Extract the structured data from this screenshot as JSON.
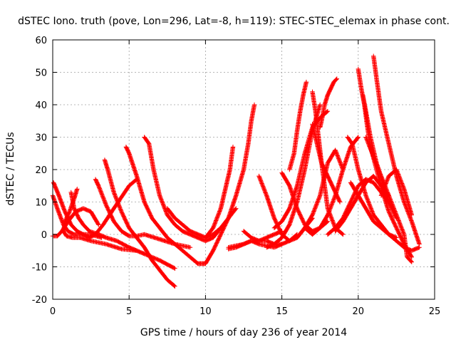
{
  "chart_data": {
    "type": "scatter",
    "title": "dSTEC Iono. truth (pove, Lon=296, Lat=-8, h=119): STEC-STEC_elemax in phase cont.",
    "xlabel": "GPS time / hours of day 236 of year 2014",
    "ylabel": "dSTEC  / TECUs",
    "xlim": [
      0,
      25
    ],
    "ylim": [
      -20,
      60
    ],
    "x_ticks": [
      0,
      5,
      10,
      15,
      20,
      25
    ],
    "y_ticks": [
      -20,
      -10,
      0,
      10,
      20,
      30,
      40,
      50,
      60
    ],
    "grid": true,
    "legend": "none",
    "marker": "plus",
    "color": "#ff0000",
    "series": [
      {
        "x": [
          0.0,
          0.3,
          0.6,
          1.0,
          1.5,
          2.0,
          2.5,
          3.0
        ],
        "y": [
          -0.5,
          -0.5,
          1,
          4,
          7,
          8,
          7,
          3
        ]
      },
      {
        "x": [
          0.05,
          0.4,
          0.8,
          1.2,
          1.6,
          2.0,
          2.4,
          2.8,
          3.3,
          4.0,
          5.0,
          5.5
        ],
        "y": [
          16,
          12,
          7,
          3,
          1,
          0,
          -1,
          0,
          3,
          8,
          15,
          17
        ]
      },
      {
        "x": [
          0.0,
          0.3,
          0.7,
          1.0,
          1.4,
          1.8,
          2.5,
          3.2
        ],
        "y": [
          12,
          8,
          3,
          1,
          0,
          0,
          0,
          -1
        ]
      },
      {
        "x": [
          1.2,
          1.4,
          1.7,
          2.0,
          2.4,
          3.0,
          3.5,
          4.2,
          5.0,
          5.5,
          6.0,
          7.0,
          8.0
        ],
        "y": [
          13,
          8,
          5,
          3,
          1,
          0,
          -1,
          -2,
          -4,
          -5,
          -6,
          -8,
          -10.5
        ]
      },
      {
        "x": [
          1.6,
          1.4,
          1.1,
          0.8,
          0.7,
          0.9,
          1.3,
          1.8,
          2.5,
          3.5,
          4.5,
          5.5
        ],
        "y": [
          14,
          11,
          7,
          4,
          1,
          -0.5,
          -1,
          -1,
          -2,
          -3,
          -4.5,
          -5
        ]
      },
      {
        "x": [
          2.8,
          3.0,
          3.5,
          4.0,
          4.5,
          5.0,
          5.5,
          6.0,
          7.0,
          8.0,
          9.0
        ],
        "y": [
          17,
          15,
          9,
          4,
          1,
          -0.5,
          -0.5,
          0,
          -1.5,
          -3,
          -4
        ]
      },
      {
        "x": [
          3.4,
          3.6,
          4.0,
          4.5,
          5.0,
          5.5,
          6.0,
          6.5,
          7.0,
          7.5,
          8.0
        ],
        "y": [
          23,
          20,
          13,
          7,
          2,
          -1,
          -4,
          -8,
          -11,
          -14,
          -16
        ]
      },
      {
        "x": [
          4.8,
          5.0,
          5.5,
          6.0,
          6.5,
          7.0,
          7.5,
          8.0,
          8.5,
          9.0,
          9.5,
          10.0
        ],
        "y": [
          27,
          25,
          18,
          10,
          5,
          2,
          -1,
          -3,
          -5,
          -7,
          -9,
          -9
        ]
      },
      {
        "x": [
          6.0,
          6.3,
          6.6,
          7.0,
          7.5,
          8.0,
          8.5,
          9.0,
          9.5,
          10.0,
          10.5,
          11.0
        ],
        "y": [
          30,
          28,
          20,
          12,
          6,
          3,
          1,
          0,
          -1,
          -2,
          -1,
          2
        ]
      },
      {
        "x": [
          7.5,
          8.0,
          8.5,
          9.0,
          9.5,
          10.0,
          10.5,
          11.0,
          11.5,
          12.0
        ],
        "y": [
          8,
          5,
          3,
          1,
          0,
          -1,
          0,
          2,
          5,
          8
        ]
      },
      {
        "x": [
          10.0,
          10.5,
          11.0,
          11.3,
          11.6,
          11.8
        ],
        "y": [
          -1,
          2,
          8,
          14,
          20,
          27
        ]
      },
      {
        "x": [
          11.5,
          12.0,
          12.5,
          13.0,
          13.5,
          14.0,
          14.5,
          15.0
        ],
        "y": [
          -4.5,
          -4,
          -3,
          -2,
          -3,
          -3.5,
          -4,
          -3
        ]
      },
      {
        "x": [
          11.5,
          12.0,
          12.5,
          13.0,
          13.5,
          14.0,
          14.5,
          15.0,
          15.5,
          16.0
        ],
        "y": [
          -4,
          -3.5,
          -3,
          -2,
          -2,
          -2,
          -3,
          -3,
          -2,
          0
        ]
      },
      {
        "x": [
          9.5,
          10.0,
          10.5,
          11.0,
          11.5,
          12.0,
          12.5,
          12.8,
          13.0,
          13.2
        ],
        "y": [
          -9,
          -9,
          -5,
          0,
          5,
          12,
          20,
          28,
          35,
          40
        ]
      },
      {
        "x": [
          12.5,
          13.0,
          13.5,
          14.0,
          14.5,
          15.0
        ],
        "y": [
          1,
          -1,
          -2,
          -1,
          0,
          1
        ]
      },
      {
        "x": [
          13.5,
          14.0,
          14.5,
          15.0,
          15.5,
          16.0,
          16.5,
          17.0
        ],
        "y": [
          18,
          12,
          5,
          0,
          -2,
          -1,
          2,
          5
        ]
      },
      {
        "x": [
          14.0,
          14.5,
          15.0,
          15.5,
          16.0,
          16.5,
          17.0,
          17.5
        ],
        "y": [
          -4,
          -3,
          -1,
          3,
          10,
          20,
          32,
          40
        ]
      },
      {
        "x": [
          14.5,
          15.0,
          15.5,
          16.0,
          16.5,
          17.0,
          17.5,
          18.0
        ],
        "y": [
          2,
          4,
          8,
          15,
          25,
          33,
          36,
          38
        ]
      },
      {
        "x": [
          15.0,
          15.5,
          16.0,
          16.5,
          17.0,
          17.5,
          18.0
        ],
        "y": [
          19,
          15,
          8,
          3,
          1,
          2,
          4
        ]
      },
      {
        "x": [
          15.5,
          15.8,
          16.0,
          16.2,
          16.4,
          16.6
        ],
        "y": [
          20,
          25,
          32,
          38,
          43,
          47
        ]
      },
      {
        "x": [
          16.0,
          16.5,
          17.0,
          17.5,
          18.0,
          18.5,
          19.0
        ],
        "y": [
          -1,
          2,
          6,
          12,
          22,
          26,
          20
        ]
      },
      {
        "x": [
          16.5,
          17.0,
          17.5,
          18.0,
          18.5,
          19.0,
          19.5,
          20.0
        ],
        "y": [
          2,
          0,
          2,
          6,
          12,
          20,
          27,
          30
        ]
      },
      {
        "x": [
          17.0,
          17.2,
          17.4,
          17.6,
          17.8,
          18.0,
          18.5,
          19.0
        ],
        "y": [
          44,
          38,
          30,
          22,
          15,
          8,
          2,
          0
        ]
      },
      {
        "x": [
          17.5,
          17.6,
          17.8,
          18.0,
          18.2,
          18.4,
          18.6
        ],
        "y": [
          33,
          35,
          40,
          43,
          45,
          47,
          48
        ]
      },
      {
        "x": [
          17.0,
          17.3,
          17.6,
          18.0,
          18.4,
          18.8
        ],
        "y": [
          34,
          28,
          22,
          18,
          14,
          10
        ]
      },
      {
        "x": [
          18.0,
          18.5,
          19.0,
          19.5,
          20.0,
          20.5,
          21.0,
          21.5,
          22.0
        ],
        "y": [
          0,
          2,
          5,
          10,
          15,
          17,
          16,
          13,
          10
        ]
      },
      {
        "x": [
          18.5,
          19.0,
          19.5,
          20.0,
          20.5,
          21.0,
          21.5,
          22.0
        ],
        "y": [
          1,
          4,
          8,
          12,
          16,
          18,
          15,
          12
        ]
      },
      {
        "x": [
          19.3,
          19.6,
          20.0,
          20.5,
          21.0,
          21.5,
          22.0,
          22.5,
          23.0,
          23.5,
          24.0
        ],
        "y": [
          30,
          28,
          20,
          12,
          6,
          3,
          0,
          -2,
          -4,
          -5,
          -4
        ]
      },
      {
        "x": [
          20.0,
          20.2,
          20.4,
          20.6,
          20.8,
          21.2,
          21.6,
          22.0,
          22.5,
          23.0,
          23.5
        ],
        "y": [
          51,
          45,
          40,
          33,
          27,
          20,
          13,
          7,
          2,
          -3,
          -7
        ]
      },
      {
        "x": [
          20.3,
          20.5,
          20.8,
          21.2,
          21.6,
          22.0,
          22.5
        ],
        "y": [
          43,
          38,
          30,
          22,
          16,
          10,
          5
        ]
      },
      {
        "x": [
          21.0,
          21.2,
          21.5,
          22.0,
          22.5,
          23.0,
          23.5,
          24.0
        ],
        "y": [
          55,
          48,
          38,
          28,
          18,
          10,
          4,
          -3
        ]
      },
      {
        "x": [
          20.5,
          21.0,
          21.5,
          22.0,
          22.5,
          23.0,
          23.2,
          23.5
        ],
        "y": [
          30,
          24,
          18,
          12,
          6,
          0,
          -7,
          -8.5
        ]
      },
      {
        "x": [
          19.5,
          20.0,
          20.5,
          21.0,
          21.5,
          22.0,
          22.5
        ],
        "y": [
          16,
          12,
          8,
          4,
          2,
          0,
          -1
        ]
      },
      {
        "x": [
          21.5,
          22.0,
          22.5,
          23.0,
          23.5
        ],
        "y": [
          12,
          18,
          20,
          14,
          6
        ]
      }
    ]
  }
}
